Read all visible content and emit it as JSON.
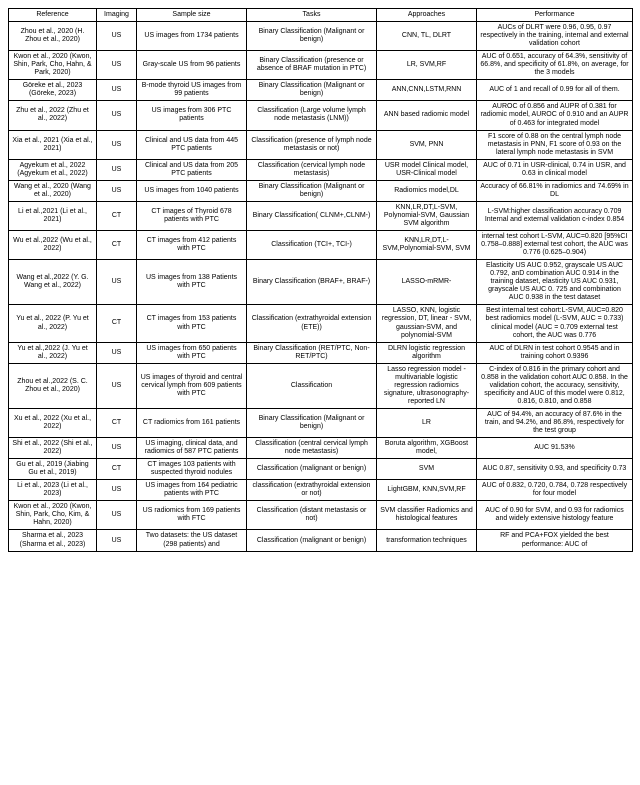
{
  "headers": [
    "Reference",
    "Imaging",
    "Sample size",
    "Tasks",
    "Approaches",
    "Performance"
  ],
  "rows": [
    {
      "ref": "Zhou et al., 2020 (H. Zhou et al., 2020)",
      "img": "US",
      "sample": "US images from 1734 patients",
      "tasks": "Binary Classification (Malignant or benign)",
      "appr": "CNN, TL, DLRT",
      "perf": "AUCs of DLRT were 0.96, 0.95, 0.97 respectively in the training, internal and external validation cohort"
    },
    {
      "ref": "Kwon et al., 2020 (Kwon, Shin, Park, Cho, Hahn, & Park, 2020)",
      "img": "US",
      "sample": "Gray-scale US from 96 patients",
      "tasks": "Binary Classification (presence or absence of BRAF mutation in PTC)",
      "appr": "LR, SVM,RF",
      "perf": "AUC of 0.651, accuracy of 64.3%, sensitivity of 66.8%, and specificity of 61.8%, on average, for the 3 models"
    },
    {
      "ref": "Göreke et al., 2023 (Göreke, 2023)",
      "img": "US",
      "sample": "B-mode thyroid US images from 99 patients",
      "tasks": "Binary Classification (Malignant or benign)",
      "appr": "ANN,CNN,LSTM,RNN",
      "perf": "AUC of 1 and recall of 0.99 for all of them."
    },
    {
      "ref": "Zhu et al., 2022 (Zhu et al., 2022)",
      "img": "US",
      "sample": "US images from 306 PTC patients",
      "tasks": "Classification (Large volume lymph node metastasis (LNM))",
      "appr": "ANN based radiomic model",
      "perf": "AUROC of 0.856 and AUPR of 0.381 for radiomic model, AUROC of 0.910 and an AUPR of 0.463 for integrated model"
    },
    {
      "ref": "Xia et al., 2021 (Xia et al., 2021)",
      "img": "US",
      "sample": "Clinical and US data from 445 PTC patients",
      "tasks": "Classification (presence of lymph node metastasis or not)",
      "appr": "SVM, PNN",
      "perf": "F1 score of 0.88 on the central lymph node metastasis in PNN, F1 score of 0.93 on the lateral lymph node metastasis in SVM"
    },
    {
      "ref": "Agyekum et al., 2022 (Agyekum et al., 2022)",
      "img": "US",
      "sample": "Clinical and US data from 205 PTC patients",
      "tasks": "Classification (cervical lymph node metastasis)",
      "appr": "USR model Clinical model, USR-Clinical model",
      "perf": "AUC of 0.71 in USR-clinical, 0.74 in USR, and 0.63 in clinical model"
    },
    {
      "ref": "Wang et al., 2020 (Wang et al., 2020)",
      "img": "US",
      "sample": "US images from 1040 patients",
      "tasks": "Binary Classification (Malignant or benign)",
      "appr": "Radiomics model,DL",
      "perf": "Accuracy of 66.81% in radiomics and 74.69% in DL"
    },
    {
      "ref": "Li et al.,2021 (Li et al., 2021)",
      "img": "CT",
      "sample": "CT images of Thyroid 678 patients with PTC",
      "tasks": "Binary Classification( CLNM+,CLNM-)",
      "appr": "KNN,LR,DT,L-SVM, Polynomial-SVM, Gaussian SVM algorithm",
      "perf": "L-SVM:higher classification accuracy 0.709 Internal and external validation c-index 0.854"
    },
    {
      "ref": "Wu et al.,2022 (Wu et al., 2022)",
      "img": "CT",
      "sample": "CT images from 412 patients with PTC",
      "tasks": "Classification (TCI+, TCI-)",
      "appr": "KNN,LR,DT,L-SVM,Polynomial-SVM, SVM",
      "perf": "internal test cohort L-SVM, AUC=0.820 [95%CI 0.758–0.888] external test cohort, the AUC was 0.776 (0.625–0.904)"
    },
    {
      "ref": "Wang et al.,2022 (Y. G. Wang et al., 2022)",
      "img": "US",
      "sample": "US images from 138 Patients with PTC",
      "tasks": "Binary Classification (BRAF+, BRAF-)",
      "appr": "LASSO-mRMR-",
      "perf": "Elasticity US AUC 0.952, grayscale US AUC 0.792, anD combination AUC 0.914 in the training dataset, elasticity US AUC 0.931, grayscale US AUC 0. 725 and combination AUC 0.938 in the test dataset"
    },
    {
      "ref": "Yu et al., 2022 (P. Yu et al., 2022)",
      "img": "CT",
      "sample": "CT images from 153 patients with PTC",
      "tasks": "Classification (extrathyroidal extension (ETE))",
      "appr": "LASSO, KNN, logistic regression, DT, linear - SVM, gaussian-SVM, and polynomial-SVM",
      "perf": "Best internal test cohort:L-SVM, AUC=0.820 best radiomics model (L-SVM, AUC = 0.733) clinical model (AUC = 0.709 external test cohort, the AUC was 0.776"
    },
    {
      "ref": "Yu et al.,2022 (J. Yu et al., 2022)",
      "img": "US",
      "sample": "US images from 650 patients with PTC",
      "tasks": "Binary Classification (RET/PTC, Non-RET/PTC)",
      "appr": "DLRN logistic regression algorithm",
      "perf": "AUC of DLRN in test cohort 0.9545 and in training cohort 0.9396"
    },
    {
      "ref": "Zhou et al.,2022 (S. C. Zhou et al., 2020)",
      "img": "US",
      "sample": "US images of thyroid and central cervical lymph  from 609 patients with PTC",
      "tasks": "Classification",
      "appr": "Lasso regression model -multivariable logistic regression radiomics signature, ultrasonography-reported LN",
      "perf": "C-index of 0.816 in the primary cohort and 0.858 in the validation cohort AUC 0.858. In the validation cohort, the accuracy, sensitivity, specificity and AUC of this model were 0.812, 0.816, 0.810, and 0.858"
    },
    {
      "ref": "Xu et al., 2022 (Xu et al., 2022)",
      "img": "CT",
      "sample": "CT radiomics from 161 patients",
      "tasks": "Binary Classification (Malignant or benign)",
      "appr": "LR",
      "perf": "AUC of 94.4%, an accuracy of 87.6% in the train, and 94.2%, and 86.8%, respectively for the test group"
    },
    {
      "ref": "Shi et al., 2022 (Shi et al., 2022)",
      "img": "US",
      "sample": "US imaging, clinical data, and radiomics of 587 PTC patients",
      "tasks": "Classification (central cervical lymph node metastasis)",
      "appr": "Boruta algorithm, XGBoost model,",
      "perf": "AUC 91.53%"
    },
    {
      "ref": "Gu et al., 2019 (Jiabing Gu et al., 2019)",
      "img": "CT",
      "sample": "CT images 103 patients with suspected thyroid nodules",
      "tasks": "Classification (malignant or benign)",
      "appr": "SVM",
      "perf": "AUC 0.87, sensitivity 0.93, and specificity 0.73"
    },
    {
      "ref": "Li et al., 2023 (Li et al., 2023)",
      "img": "US",
      "sample": "US images from 164 pediatric patients with PTC",
      "tasks": "classification (extrathyroidal extension or not)",
      "appr": "LightGBM, KNN,SVM,RF",
      "perf": "AUC of 0.832, 0.720, 0.784, 0.728 respectively for four model"
    },
    {
      "ref": "Kwon et al., 2020 (Kwon, Shin, Park, Cho, Kim, & Hahn, 2020)",
      "img": "US",
      "sample": "US radiomics from 169 patients with FTC",
      "tasks": "Classification (distant metastasis or not)",
      "appr": "SVM classifier Radiomics and histological features",
      "perf": "AUC of 0.90 for SVM, and 0.93 for radiomics and widely extensive histology feature"
    },
    {
      "ref": "Sharma et al., 2023 (Sharma et al., 2023)",
      "img": "US",
      "sample": "Two datasets: the US dataset (298 patients) and",
      "tasks": "Classification (malignant or benign)",
      "appr": "transformation techniques",
      "perf": "RF and PCA+FOX yielded the best performance: AUC of"
    }
  ]
}
